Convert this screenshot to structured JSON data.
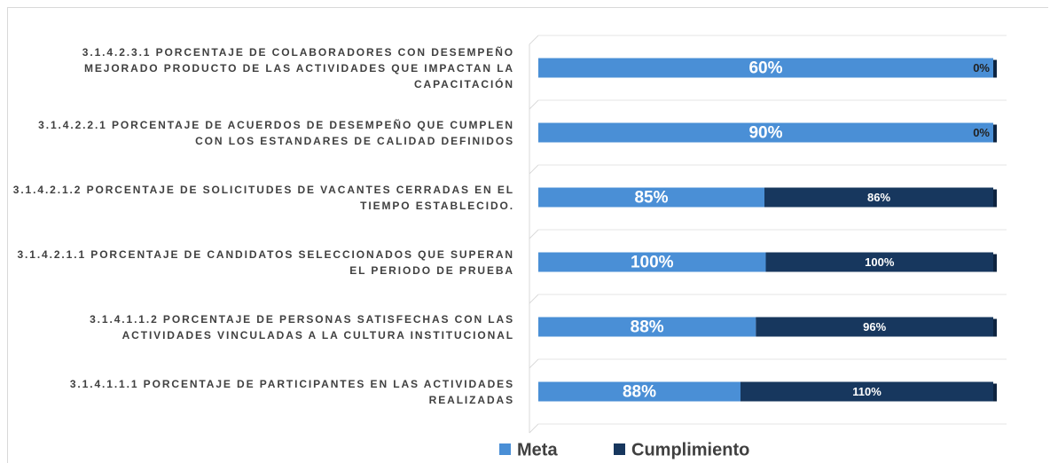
{
  "chart_data": {
    "type": "bar",
    "orientation": "horizontal",
    "stacked": "percent",
    "categories": [
      "3.1.4.2.3.1 PORCENTAJE DE COLABORADORES CON DESEMPEÑO MEJORADO PRODUCTO DE LAS ACTIVIDADES QUE IMPACTAN LA CAPACITACIÓN",
      "3.1.4.2.2.1 PORCENTAJE DE ACUERDOS DE DESEMPEÑO QUE CUMPLEN CON LOS ESTANDARES DE CALIDAD DEFINIDOS",
      "3.1.4.2.1.2 PORCENTAJE DE SOLICITUDES DE VACANTES CERRADAS EN EL TIEMPO ESTABLECIDO.",
      "3.1.4.2.1.1 PORCENTAJE DE CANDIDATOS SELECCIONADOS QUE SUPERAN EL PERIODO DE PRUEBA",
      "3.1.4.1.1.2 PORCENTAJE DE PERSONAS SATISFECHAS CON LAS ACTIVIDADES VINCULADAS A LA CULTURA INSTITUCIONAL",
      "3.1.4.1.1.1 PORCENTAJE DE PARTICIPANTES EN LAS ACTIVIDADES REALIZADAS"
    ],
    "series": [
      {
        "name": "Meta",
        "color": "#4a8fd6",
        "values": [
          60,
          90,
          85,
          100,
          88,
          88
        ],
        "value_labels": [
          "60%",
          "90%",
          "85%",
          "100%",
          "88%",
          "88%"
        ]
      },
      {
        "name": "Cumplimiento",
        "color": "#17375e",
        "values": [
          0,
          0,
          86,
          100,
          96,
          110
        ],
        "value_labels": [
          "0%",
          "0%",
          "86%",
          "100%",
          "96%",
          "110%"
        ]
      }
    ],
    "legend": "bottom"
  }
}
